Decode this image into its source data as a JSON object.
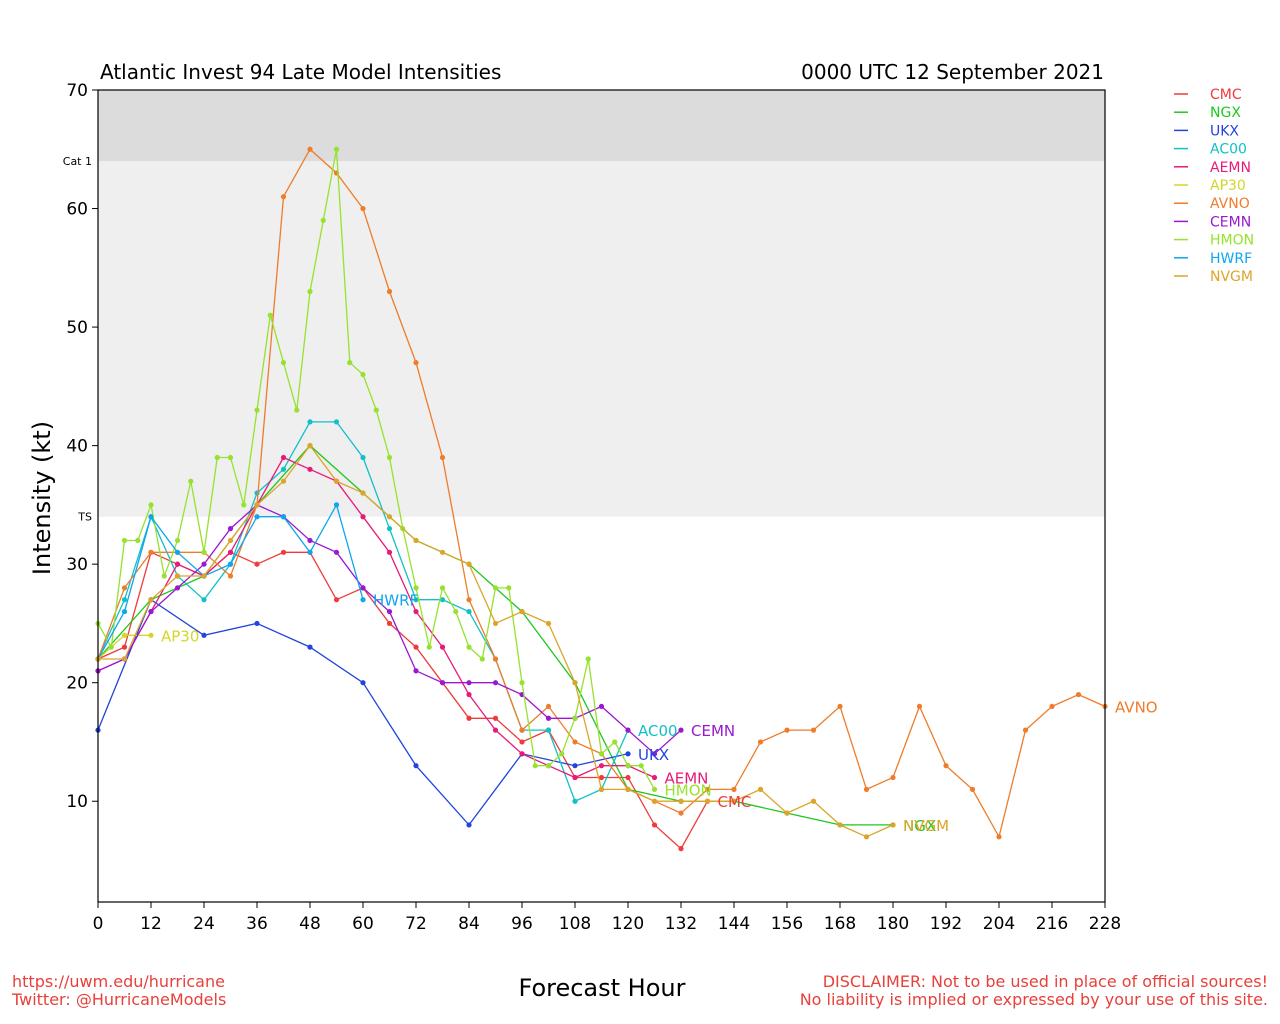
{
  "footer": {
    "url": "https://uwm.edu/hurricane",
    "twitter": "Twitter: @HurricaneModels",
    "disclaimer1": "DISCLAIMER: Not to be used in place of official sources!",
    "disclaimer2": "No liability is implied or expressed by your use of this site."
  },
  "chart_data": {
    "type": "line",
    "title": "Atlantic Invest 94 Late Model Intensities",
    "subtitle": "0000 UTC 12 September 2021",
    "xlabel": "Forecast Hour",
    "ylabel": "Intensity (kt)",
    "xlim": [
      0,
      228
    ],
    "ylim": [
      1.5,
      70
    ],
    "xticks": [
      0,
      12,
      24,
      36,
      48,
      60,
      72,
      84,
      96,
      108,
      120,
      132,
      144,
      156,
      168,
      180,
      192,
      204,
      216,
      228
    ],
    "yticks": [
      10,
      20,
      30,
      40,
      50,
      60,
      70
    ],
    "grid": false,
    "legend_position": "top-right",
    "bands": [
      {
        "name": "TS",
        "from": 34,
        "to": 64,
        "color": "#efefef"
      },
      {
        "name": "Cat 1",
        "from": 64,
        "to": 70,
        "color": "#dcdcdc"
      }
    ],
    "series": [
      {
        "name": "CMC",
        "color": "#ee3b3b",
        "points": [
          [
            0,
            22
          ],
          [
            6,
            23
          ],
          [
            12,
            31
          ],
          [
            18,
            30
          ],
          [
            24,
            29
          ],
          [
            30,
            31
          ],
          [
            36,
            30
          ],
          [
            42,
            31
          ],
          [
            48,
            31
          ],
          [
            54,
            27
          ],
          [
            60,
            28
          ],
          [
            66,
            25
          ],
          [
            72,
            23
          ],
          [
            78,
            20
          ],
          [
            84,
            17
          ],
          [
            90,
            17
          ],
          [
            96,
            15
          ],
          [
            102,
            16
          ],
          [
            108,
            12
          ],
          [
            114,
            12
          ],
          [
            120,
            12
          ],
          [
            126,
            8
          ],
          [
            132,
            6
          ],
          [
            138,
            10
          ]
        ]
      },
      {
        "name": "NGX",
        "color": "#1ec81e",
        "points": [
          [
            0,
            22
          ],
          [
            12,
            27
          ],
          [
            24,
            29
          ],
          [
            36,
            35
          ],
          [
            48,
            40
          ],
          [
            60,
            36
          ],
          [
            72,
            32
          ],
          [
            84,
            30
          ],
          [
            96,
            26
          ],
          [
            108,
            20
          ],
          [
            120,
            11
          ],
          [
            132,
            10
          ],
          [
            144,
            10
          ],
          [
            156,
            9
          ],
          [
            168,
            8
          ],
          [
            180,
            8
          ]
        ]
      },
      {
        "name": "UKX",
        "color": "#2244dd",
        "points": [
          [
            0,
            16
          ],
          [
            12,
            27
          ],
          [
            24,
            24
          ],
          [
            36,
            25
          ],
          [
            48,
            23
          ],
          [
            60,
            20
          ],
          [
            72,
            13
          ],
          [
            84,
            8
          ],
          [
            96,
            14
          ],
          [
            108,
            13
          ],
          [
            120,
            14
          ]
        ]
      },
      {
        "name": "AC00",
        "color": "#12c0c8",
        "points": [
          [
            0,
            22
          ],
          [
            6,
            27
          ],
          [
            12,
            34
          ],
          [
            18,
            29
          ],
          [
            24,
            27
          ],
          [
            30,
            30
          ],
          [
            36,
            36
          ],
          [
            42,
            38
          ],
          [
            48,
            42
          ],
          [
            54,
            42
          ],
          [
            60,
            39
          ],
          [
            66,
            33
          ],
          [
            72,
            27
          ],
          [
            78,
            27
          ],
          [
            84,
            26
          ],
          [
            90,
            22
          ],
          [
            96,
            16
          ],
          [
            102,
            16
          ],
          [
            108,
            10
          ],
          [
            114,
            11
          ],
          [
            120,
            16
          ]
        ]
      },
      {
        "name": "AEMN",
        "color": "#e81a78",
        "points": [
          [
            0,
            21
          ],
          [
            6,
            22
          ],
          [
            12,
            26
          ],
          [
            18,
            30
          ],
          [
            24,
            29
          ],
          [
            30,
            31
          ],
          [
            36,
            35
          ],
          [
            42,
            39
          ],
          [
            48,
            38
          ],
          [
            54,
            37
          ],
          [
            60,
            34
          ],
          [
            66,
            31
          ],
          [
            72,
            26
          ],
          [
            78,
            23
          ],
          [
            84,
            19
          ],
          [
            90,
            16
          ],
          [
            96,
            14
          ],
          [
            102,
            13
          ],
          [
            108,
            12
          ],
          [
            114,
            13
          ],
          [
            120,
            13
          ],
          [
            126,
            12
          ]
        ]
      },
      {
        "name": "AP30",
        "color": "#d6d628",
        "points": [
          [
            0,
            22
          ],
          [
            6,
            24
          ],
          [
            12,
            24
          ]
        ]
      },
      {
        "name": "AVNO",
        "color": "#ee7c2a",
        "points": [
          [
            0,
            22
          ],
          [
            6,
            28
          ],
          [
            12,
            31
          ],
          [
            18,
            31
          ],
          [
            24,
            31
          ],
          [
            30,
            29
          ],
          [
            36,
            35
          ],
          [
            42,
            61
          ],
          [
            48,
            65
          ],
          [
            54,
            63
          ],
          [
            60,
            60
          ],
          [
            66,
            53
          ],
          [
            72,
            47
          ],
          [
            78,
            39
          ],
          [
            84,
            27
          ],
          [
            90,
            22
          ],
          [
            96,
            16
          ],
          [
            102,
            18
          ],
          [
            108,
            15
          ],
          [
            114,
            14
          ],
          [
            120,
            11
          ],
          [
            126,
            10
          ],
          [
            132,
            9
          ],
          [
            138,
            11
          ],
          [
            144,
            11
          ],
          [
            150,
            15
          ],
          [
            156,
            16
          ],
          [
            162,
            16
          ],
          [
            168,
            18
          ],
          [
            174,
            11
          ],
          [
            180,
            12
          ],
          [
            186,
            18
          ],
          [
            192,
            13
          ],
          [
            198,
            11
          ],
          [
            204,
            7
          ],
          [
            210,
            16
          ],
          [
            216,
            18
          ],
          [
            222,
            19
          ],
          [
            228,
            18
          ]
        ]
      },
      {
        "name": "CEMN",
        "color": "#9a18d0",
        "points": [
          [
            0,
            21
          ],
          [
            6,
            22
          ],
          [
            12,
            26
          ],
          [
            18,
            28
          ],
          [
            24,
            30
          ],
          [
            30,
            33
          ],
          [
            36,
            35
          ],
          [
            42,
            34
          ],
          [
            48,
            32
          ],
          [
            54,
            31
          ],
          [
            60,
            28
          ],
          [
            66,
            26
          ],
          [
            72,
            21
          ],
          [
            78,
            20
          ],
          [
            84,
            20
          ],
          [
            90,
            20
          ],
          [
            96,
            19
          ],
          [
            102,
            17
          ],
          [
            108,
            17
          ],
          [
            114,
            18
          ],
          [
            120,
            16
          ],
          [
            126,
            14
          ],
          [
            132,
            16
          ]
        ]
      },
      {
        "name": "HMON",
        "color": "#96e22e",
        "points": [
          [
            0,
            25
          ],
          [
            3,
            23
          ],
          [
            6,
            32
          ],
          [
            9,
            32
          ],
          [
            12,
            35
          ],
          [
            15,
            29
          ],
          [
            18,
            32
          ],
          [
            21,
            37
          ],
          [
            24,
            31
          ],
          [
            27,
            39
          ],
          [
            30,
            39
          ],
          [
            33,
            35
          ],
          [
            36,
            43
          ],
          [
            39,
            51
          ],
          [
            42,
            47
          ],
          [
            45,
            43
          ],
          [
            48,
            53
          ],
          [
            51,
            59
          ],
          [
            54,
            65
          ],
          [
            57,
            47
          ],
          [
            60,
            46
          ],
          [
            63,
            43
          ],
          [
            66,
            39
          ],
          [
            69,
            33
          ],
          [
            72,
            28
          ],
          [
            75,
            23
          ],
          [
            78,
            28
          ],
          [
            81,
            26
          ],
          [
            84,
            23
          ],
          [
            87,
            22
          ],
          [
            90,
            28
          ],
          [
            93,
            28
          ],
          [
            96,
            20
          ],
          [
            99,
            13
          ],
          [
            102,
            13
          ],
          [
            105,
            14
          ],
          [
            108,
            17
          ],
          [
            111,
            22
          ],
          [
            114,
            14
          ],
          [
            117,
            15
          ],
          [
            120,
            13
          ],
          [
            123,
            13
          ],
          [
            126,
            11
          ]
        ]
      },
      {
        "name": "HWRF",
        "color": "#0ea6ee",
        "points": [
          [
            0,
            22
          ],
          [
            6,
            26
          ],
          [
            12,
            34
          ],
          [
            18,
            31
          ],
          [
            24,
            29
          ],
          [
            30,
            30
          ],
          [
            36,
            34
          ],
          [
            42,
            34
          ],
          [
            48,
            31
          ],
          [
            54,
            35
          ],
          [
            60,
            27
          ]
        ]
      },
      {
        "name": "NVGM",
        "color": "#dea42a",
        "points": [
          [
            0,
            22
          ],
          [
            6,
            22
          ],
          [
            12,
            27
          ],
          [
            18,
            29
          ],
          [
            24,
            29
          ],
          [
            30,
            32
          ],
          [
            36,
            35
          ],
          [
            42,
            37
          ],
          [
            48,
            40
          ],
          [
            54,
            37
          ],
          [
            60,
            36
          ],
          [
            66,
            34
          ],
          [
            72,
            32
          ],
          [
            78,
            31
          ],
          [
            84,
            30
          ],
          [
            90,
            25
          ],
          [
            96,
            26
          ],
          [
            102,
            25
          ],
          [
            108,
            20
          ],
          [
            114,
            11
          ],
          [
            120,
            11
          ],
          [
            126,
            10
          ],
          [
            132,
            10
          ],
          [
            138,
            10
          ],
          [
            144,
            10
          ],
          [
            150,
            11
          ],
          [
            156,
            9
          ],
          [
            162,
            10
          ],
          [
            168,
            8
          ],
          [
            174,
            7
          ],
          [
            180,
            8
          ]
        ]
      }
    ]
  }
}
